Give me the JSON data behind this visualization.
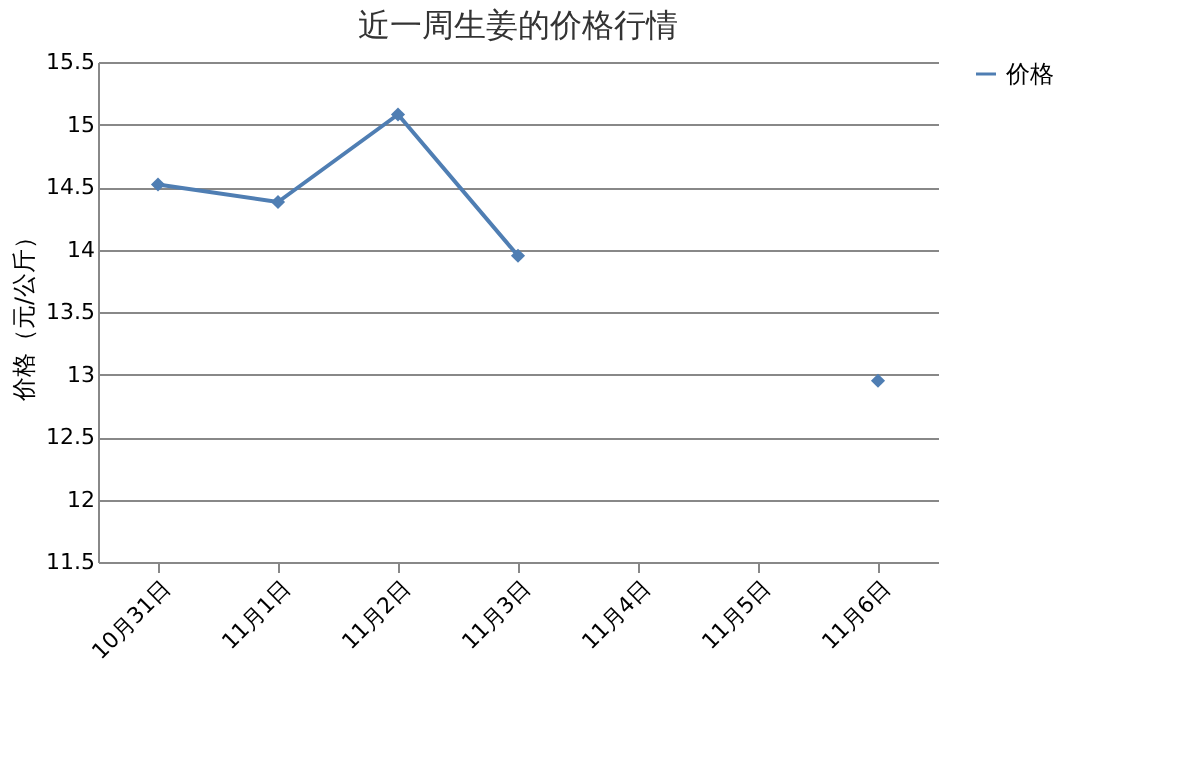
{
  "chart_data": {
    "type": "line",
    "title": "近一周生姜的价格行情",
    "ylabel": "价格（元/公斤）",
    "categories": [
      "10月31日",
      "11月1日",
      "11月2日",
      "11月3日",
      "11月4日",
      "11月5日",
      "11月6日"
    ],
    "series": [
      {
        "name": "价格",
        "color": "#4f7eb3",
        "values": [
          14.52,
          14.38,
          15.08,
          13.95,
          null,
          null,
          12.95
        ]
      }
    ],
    "ylim": [
      11.5,
      15.5
    ],
    "yticks": [
      11.5,
      12,
      12.5,
      13,
      13.5,
      14,
      14.5,
      15,
      15.5
    ],
    "grid": "y",
    "legend": "right",
    "marker": "diamond",
    "line_style": "solid"
  }
}
